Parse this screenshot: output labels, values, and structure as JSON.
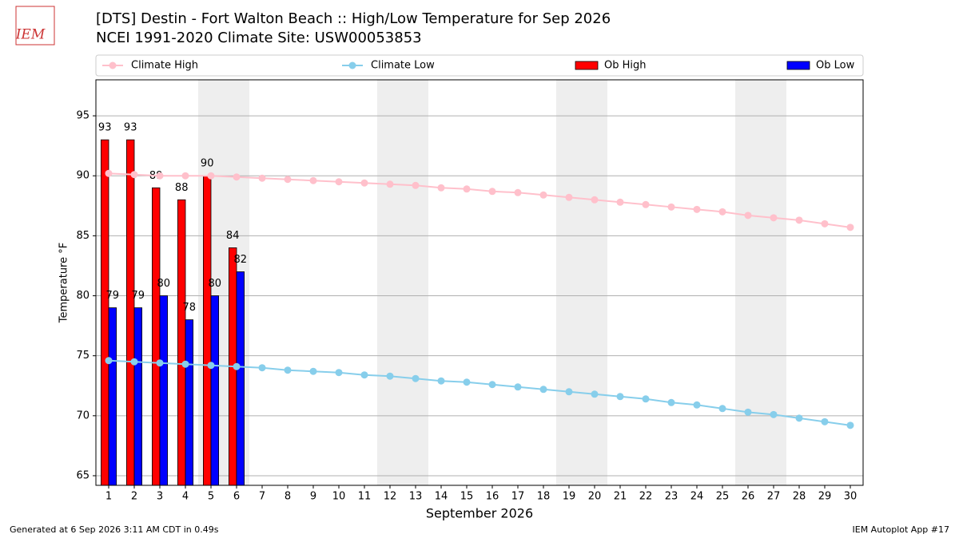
{
  "logo_text": "IEM",
  "footer_left": "Generated at 6 Sep 2026 3:11 AM CDT in 0.49s",
  "footer_right": "IEM Autoplot App #17",
  "chart_data": {
    "type": "combo",
    "title": "[DTS] Destin - Fort Walton Beach :: High/Low Temperature for Sep 2026",
    "subtitle": "NCEI 1991-2020 Climate Site: USW00053853",
    "xlabel": "September 2026",
    "ylabel": "Temperature °F",
    "x": [
      1,
      2,
      3,
      4,
      5,
      6,
      7,
      8,
      9,
      10,
      11,
      12,
      13,
      14,
      15,
      16,
      17,
      18,
      19,
      20,
      21,
      22,
      23,
      24,
      25,
      26,
      27,
      28,
      29,
      30
    ],
    "xlim": [
      0.5,
      30.5
    ],
    "xticks": [
      1,
      2,
      3,
      4,
      5,
      6,
      7,
      8,
      9,
      10,
      11,
      12,
      13,
      14,
      15,
      16,
      17,
      18,
      19,
      20,
      21,
      22,
      23,
      24,
      25,
      26,
      27,
      28,
      29,
      30
    ],
    "ylim": [
      64.2,
      98
    ],
    "yticks": [
      65,
      70,
      75,
      80,
      85,
      90,
      95
    ],
    "grid": true,
    "shaded_ranges": [
      [
        4.5,
        6.5
      ],
      [
        11.5,
        13.5
      ],
      [
        18.5,
        20.5
      ],
      [
        25.5,
        27.5
      ]
    ],
    "series": [
      {
        "name": "Climate High",
        "kind": "line",
        "color": "#ffc0cb",
        "values": [
          90.2,
          90.1,
          90.0,
          90.0,
          90.0,
          89.9,
          89.8,
          89.7,
          89.6,
          89.5,
          89.4,
          89.3,
          89.2,
          89.0,
          88.9,
          88.7,
          88.6,
          88.4,
          88.2,
          88.0,
          87.8,
          87.6,
          87.4,
          87.2,
          87.0,
          86.7,
          86.5,
          86.3,
          86.0,
          85.7
        ]
      },
      {
        "name": "Climate Low",
        "kind": "line",
        "color": "#87ceeb",
        "values": [
          74.6,
          74.5,
          74.4,
          74.3,
          74.2,
          74.1,
          74.0,
          73.8,
          73.7,
          73.6,
          73.4,
          73.3,
          73.1,
          72.9,
          72.8,
          72.6,
          72.4,
          72.2,
          72.0,
          71.8,
          71.6,
          71.4,
          71.1,
          70.9,
          70.6,
          70.3,
          70.1,
          69.8,
          69.5,
          69.2
        ]
      },
      {
        "name": "Ob High",
        "kind": "bar",
        "color": "#ff0000",
        "values": [
          93,
          93,
          89,
          88,
          90,
          84,
          null,
          null,
          null,
          null,
          null,
          null,
          null,
          null,
          null,
          null,
          null,
          null,
          null,
          null,
          null,
          null,
          null,
          null,
          null,
          null,
          null,
          null,
          null,
          null
        ]
      },
      {
        "name": "Ob Low",
        "kind": "bar",
        "color": "#0000ff",
        "values": [
          79,
          79,
          80,
          78,
          80,
          82,
          null,
          null,
          null,
          null,
          null,
          null,
          null,
          null,
          null,
          null,
          null,
          null,
          null,
          null,
          null,
          null,
          null,
          null,
          null,
          null,
          null,
          null,
          null,
          null
        ]
      }
    ]
  }
}
